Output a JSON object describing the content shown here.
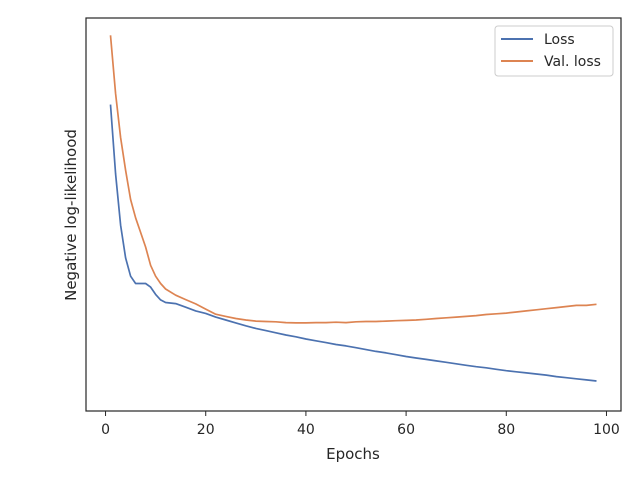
{
  "chart_data": {
    "type": "line",
    "xlabel": "Epochs",
    "ylabel": "Negative log-likelihood",
    "xlim": [
      -3.9,
      102.9
    ],
    "ylim": [
      0,
      1
    ],
    "x_ticks": [
      0,
      20,
      40,
      60,
      80,
      100
    ],
    "y_ticks": [],
    "grid": false,
    "legend_position": "top-right",
    "series": [
      {
        "name": "Loss",
        "color": "#4c72b0",
        "x": [
          1,
          2,
          3,
          4,
          5,
          6,
          7,
          8,
          9,
          10,
          11,
          12,
          14,
          16,
          18,
          20,
          22,
          24,
          26,
          28,
          30,
          32,
          34,
          36,
          38,
          40,
          42,
          44,
          46,
          48,
          50,
          52,
          54,
          56,
          58,
          60,
          62,
          64,
          66,
          68,
          70,
          72,
          74,
          76,
          78,
          80,
          82,
          84,
          86,
          88,
          90,
          92,
          94,
          96,
          98
        ],
        "y": [
          0.79,
          0.6,
          0.46,
          0.37,
          0.32,
          0.3,
          0.3,
          0.3,
          0.29,
          0.27,
          0.255,
          0.248,
          0.245,
          0.235,
          0.225,
          0.218,
          0.208,
          0.2,
          0.192,
          0.184,
          0.177,
          0.171,
          0.165,
          0.159,
          0.154,
          0.148,
          0.143,
          0.138,
          0.133,
          0.129,
          0.124,
          0.119,
          0.114,
          0.11,
          0.105,
          0.1,
          0.096,
          0.092,
          0.088,
          0.084,
          0.08,
          0.076,
          0.072,
          0.069,
          0.065,
          0.061,
          0.058,
          0.055,
          0.052,
          0.049,
          0.045,
          0.042,
          0.039,
          0.036,
          0.033
        ]
      },
      {
        "name": "Val. loss",
        "color": "#dd8452",
        "x": [
          1,
          2,
          3,
          4,
          5,
          6,
          7,
          8,
          9,
          10,
          11,
          12,
          14,
          16,
          18,
          20,
          22,
          24,
          26,
          28,
          30,
          32,
          34,
          36,
          38,
          40,
          42,
          44,
          46,
          48,
          50,
          52,
          54,
          56,
          58,
          60,
          62,
          64,
          66,
          68,
          70,
          72,
          74,
          76,
          78,
          80,
          82,
          84,
          86,
          88,
          90,
          92,
          94,
          96,
          98
        ],
        "y": [
          0.98,
          0.82,
          0.7,
          0.61,
          0.53,
          0.48,
          0.44,
          0.4,
          0.35,
          0.32,
          0.3,
          0.285,
          0.268,
          0.256,
          0.244,
          0.23,
          0.216,
          0.21,
          0.204,
          0.2,
          0.197,
          0.196,
          0.195,
          0.193,
          0.192,
          0.192,
          0.193,
          0.193,
          0.194,
          0.193,
          0.195,
          0.196,
          0.196,
          0.197,
          0.198,
          0.199,
          0.2,
          0.202,
          0.204,
          0.206,
          0.208,
          0.21,
          0.212,
          0.215,
          0.217,
          0.219,
          0.222,
          0.225,
          0.228,
          0.231,
          0.234,
          0.237,
          0.24,
          0.24,
          0.243
        ]
      }
    ]
  }
}
